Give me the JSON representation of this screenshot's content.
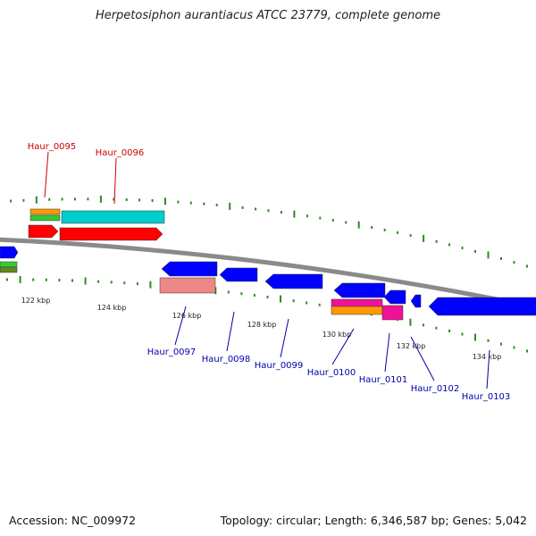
{
  "title": "Herpetosiphon aurantiacus ATCC 23779, complete genome",
  "footer": {
    "accession": "Accession: NC_009972",
    "summary": "Topology: circular; Length: 6,346,587 bp; Genes: 5,042"
  },
  "colors": {
    "backbone": "#8a8a8a",
    "tick": "#2e8b22",
    "forward_label": "#cc0000",
    "reverse_label": "#0000aa",
    "red": "#ff0000",
    "cyan": "#00cccc",
    "orange": "#ff9900",
    "green": "#33cc33",
    "blue": "#0000ff",
    "pink": "#ee8888",
    "magenta": "#ee1199",
    "olive": "#668822"
  },
  "scale_labels": [
    "122 kbp",
    "124 kbp",
    "126 kbp",
    "128 kbp",
    "130 kbp",
    "132 kbp",
    "134 kbp"
  ],
  "gene_labels": [
    {
      "text": "Haur_0095",
      "strand": "forward"
    },
    {
      "text": "Haur_0096",
      "strand": "forward"
    },
    {
      "text": "Haur_0097",
      "strand": "reverse"
    },
    {
      "text": "Haur_0098",
      "strand": "reverse"
    },
    {
      "text": "Haur_0099",
      "strand": "reverse"
    },
    {
      "text": "Haur_0100",
      "strand": "reverse"
    },
    {
      "text": "Haur_0101",
      "strand": "reverse"
    },
    {
      "text": "Haur_0102",
      "strand": "reverse"
    },
    {
      "text": "Haur_0103",
      "strand": "reverse"
    }
  ]
}
